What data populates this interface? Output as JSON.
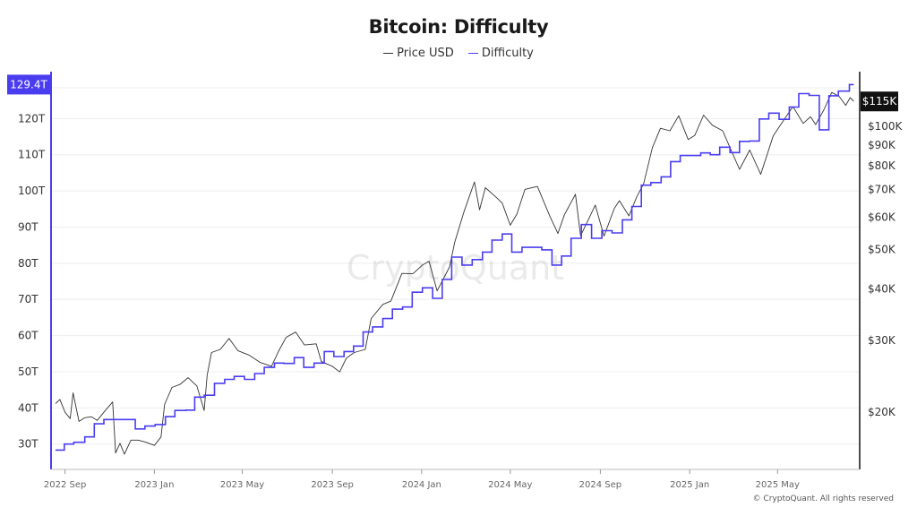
{
  "title": "Bitcoin: Difficulty",
  "legend": [
    {
      "label": "Price USD",
      "color": "#333333"
    },
    {
      "label": "Difficulty",
      "color": "#4a3df0"
    }
  ],
  "watermark": "CryptoQuant",
  "copyright": "© CryptoQuant. All rights reserved",
  "colors": {
    "difficulty": "#4a3df0",
    "price": "#333333",
    "current_difficulty_badge": "#4a3df0",
    "current_price_badge": "#111111"
  },
  "chart_data": {
    "type": "line",
    "title": "Bitcoin: Difficulty",
    "x_ticks": [
      "2022 Sep",
      "2023 Jan",
      "2023 May",
      "2023 Sep",
      "2024 Jan",
      "2024 May",
      "2024 Sep",
      "2025 Jan",
      "2025 May"
    ],
    "left_axis": {
      "series": "Difficulty",
      "ticks": [
        "30T",
        "40T",
        "50T",
        "60T",
        "70T",
        "80T",
        "90T",
        "100T",
        "110T",
        "120T"
      ],
      "ylim": [
        23,
        130
      ],
      "current_label": "129.4T"
    },
    "right_axis": {
      "series": "Price USD",
      "scale": "log",
      "ticks": [
        "$20K",
        "$30K",
        "$40K",
        "$50K",
        "$60K",
        "$70K",
        "$80K",
        "$90K",
        "$100K"
      ],
      "current_label": "$115K"
    },
    "grid": "horizontal",
    "series": [
      {
        "name": "Difficulty",
        "axis": "left",
        "step": true,
        "points": [
          [
            "2022-08-19",
            28.35
          ],
          [
            "2022-08-31",
            30.0
          ],
          [
            "2022-09-13",
            30.5
          ],
          [
            "2022-09-28",
            32.0
          ],
          [
            "2022-10-11",
            35.6
          ],
          [
            "2022-10-24",
            36.8
          ],
          [
            "2022-11-07",
            36.8
          ],
          [
            "2022-11-21",
            36.8
          ],
          [
            "2022-12-06",
            34.2
          ],
          [
            "2022-12-19",
            35.0
          ],
          [
            "2023-01-02",
            35.4
          ],
          [
            "2023-01-16",
            37.6
          ],
          [
            "2023-01-29",
            39.3
          ],
          [
            "2023-02-13",
            39.4
          ],
          [
            "2023-02-25",
            43.0
          ],
          [
            "2023-03-10",
            43.5
          ],
          [
            "2023-03-24",
            46.8
          ],
          [
            "2023-04-07",
            47.9
          ],
          [
            "2023-04-20",
            48.7
          ],
          [
            "2023-05-04",
            47.9
          ],
          [
            "2023-05-18",
            49.5
          ],
          [
            "2023-05-31",
            51.2
          ],
          [
            "2023-06-14",
            52.4
          ],
          [
            "2023-06-27",
            52.3
          ],
          [
            "2023-07-11",
            53.9
          ],
          [
            "2023-07-24",
            51.2
          ],
          [
            "2023-08-07",
            52.4
          ],
          [
            "2023-08-21",
            55.6
          ],
          [
            "2023-09-03",
            54.2
          ],
          [
            "2023-09-17",
            55.6
          ],
          [
            "2023-09-30",
            57.1
          ],
          [
            "2023-10-13",
            61.0
          ],
          [
            "2023-10-26",
            62.4
          ],
          [
            "2023-11-09",
            64.7
          ],
          [
            "2023-11-22",
            67.3
          ],
          [
            "2023-12-06",
            67.9
          ],
          [
            "2023-12-19",
            72.0
          ],
          [
            "2024-01-02",
            73.2
          ],
          [
            "2024-01-16",
            70.3
          ],
          [
            "2024-01-29",
            75.5
          ],
          [
            "2024-02-11",
            81.7
          ],
          [
            "2024-02-25",
            79.5
          ],
          [
            "2024-03-10",
            81.0
          ],
          [
            "2024-03-24",
            83.1
          ],
          [
            "2024-04-06",
            86.4
          ],
          [
            "2024-04-20",
            88.1
          ],
          [
            "2024-05-03",
            83.1
          ],
          [
            "2024-05-17",
            84.4
          ],
          [
            "2024-05-30",
            84.4
          ],
          [
            "2024-06-13",
            83.7
          ],
          [
            "2024-06-27",
            79.5
          ],
          [
            "2024-07-10",
            82.0
          ],
          [
            "2024-07-23",
            86.9
          ],
          [
            "2024-08-06",
            90.7
          ],
          [
            "2024-08-20",
            86.9
          ],
          [
            "2024-09-03",
            89.0
          ],
          [
            "2024-09-17",
            88.4
          ],
          [
            "2024-10-01",
            92.0
          ],
          [
            "2024-10-14",
            95.7
          ],
          [
            "2024-10-27",
            101.6
          ],
          [
            "2024-11-09",
            102.3
          ],
          [
            "2024-11-23",
            103.9
          ],
          [
            "2024-12-06",
            108.1
          ],
          [
            "2024-12-19",
            109.8
          ],
          [
            "2025-01-02",
            109.8
          ],
          [
            "2025-01-16",
            110.5
          ],
          [
            "2025-01-29",
            110.0
          ],
          [
            "2025-02-11",
            112.1
          ],
          [
            "2025-02-25",
            110.6
          ],
          [
            "2025-03-10",
            113.7
          ],
          [
            "2025-03-24",
            113.8
          ],
          [
            "2025-04-06",
            119.9
          ],
          [
            "2025-04-19",
            121.5
          ],
          [
            "2025-05-03",
            119.8
          ],
          [
            "2025-05-17",
            123.2
          ],
          [
            "2025-05-30",
            126.9
          ],
          [
            "2025-06-13",
            126.4
          ],
          [
            "2025-06-27",
            116.9
          ],
          [
            "2025-07-10",
            126.3
          ],
          [
            "2025-07-23",
            127.6
          ],
          [
            "2025-08-04",
            127.6
          ],
          [
            "2025-08-07",
            129.4
          ],
          [
            "2025-08-13",
            129.4
          ]
        ]
      },
      {
        "name": "Price USD",
        "axis": "right",
        "step": false,
        "points": [
          [
            "2022-08-19",
            21000
          ],
          [
            "2022-08-25",
            21500
          ],
          [
            "2022-09-01",
            20000
          ],
          [
            "2022-09-08",
            19300
          ],
          [
            "2022-09-12",
            22300
          ],
          [
            "2022-09-20",
            19000
          ],
          [
            "2022-09-28",
            19400
          ],
          [
            "2022-10-07",
            19500
          ],
          [
            "2022-10-15",
            19100
          ],
          [
            "2022-10-25",
            20100
          ],
          [
            "2022-11-05",
            21200
          ],
          [
            "2022-11-09",
            15900
          ],
          [
            "2022-11-15",
            16800
          ],
          [
            "2022-11-21",
            15800
          ],
          [
            "2022-11-30",
            17100
          ],
          [
            "2022-12-10",
            17100
          ],
          [
            "2022-12-20",
            16900
          ],
          [
            "2023-01-01",
            16600
          ],
          [
            "2023-01-10",
            17400
          ],
          [
            "2023-01-15",
            20900
          ],
          [
            "2023-01-25",
            23000
          ],
          [
            "2023-02-05",
            23400
          ],
          [
            "2023-02-16",
            24300
          ],
          [
            "2023-02-28",
            23200
          ],
          [
            "2023-03-10",
            20200
          ],
          [
            "2023-03-14",
            24600
          ],
          [
            "2023-03-20",
            28000
          ],
          [
            "2023-04-01",
            28500
          ],
          [
            "2023-04-13",
            30300
          ],
          [
            "2023-04-25",
            28300
          ],
          [
            "2023-05-10",
            27600
          ],
          [
            "2023-05-25",
            26500
          ],
          [
            "2023-06-10",
            25900
          ],
          [
            "2023-06-20",
            28300
          ],
          [
            "2023-06-30",
            30500
          ],
          [
            "2023-07-13",
            31400
          ],
          [
            "2023-07-25",
            29200
          ],
          [
            "2023-08-10",
            29400
          ],
          [
            "2023-08-17",
            26600
          ],
          [
            "2023-09-01",
            25900
          ],
          [
            "2023-09-11",
            25100
          ],
          [
            "2023-09-20",
            27100
          ],
          [
            "2023-10-01",
            28000
          ],
          [
            "2023-10-16",
            28500
          ],
          [
            "2023-10-24",
            33900
          ],
          [
            "2023-11-09",
            36700
          ],
          [
            "2023-11-20",
            37400
          ],
          [
            "2023-12-05",
            43700
          ],
          [
            "2023-12-20",
            43600
          ],
          [
            "2024-01-02",
            45800
          ],
          [
            "2024-01-11",
            46800
          ],
          [
            "2024-01-22",
            39600
          ],
          [
            "2024-02-08",
            45300
          ],
          [
            "2024-02-15",
            52000
          ],
          [
            "2024-02-28",
            62000
          ],
          [
            "2024-03-13",
            73100
          ],
          [
            "2024-03-20",
            62500
          ],
          [
            "2024-03-28",
            70800
          ],
          [
            "2024-04-12",
            67000
          ],
          [
            "2024-04-20",
            64900
          ],
          [
            "2024-05-01",
            57300
          ],
          [
            "2024-05-10",
            61000
          ],
          [
            "2024-05-21",
            70100
          ],
          [
            "2024-06-07",
            71300
          ],
          [
            "2024-06-24",
            60300
          ],
          [
            "2024-07-05",
            54700
          ],
          [
            "2024-07-14",
            60800
          ],
          [
            "2024-07-29",
            68200
          ],
          [
            "2024-08-05",
            54000
          ],
          [
            "2024-08-15",
            58800
          ],
          [
            "2024-08-25",
            64200
          ],
          [
            "2024-09-06",
            53900
          ],
          [
            "2024-09-20",
            63000
          ],
          [
            "2024-09-27",
            65800
          ],
          [
            "2024-10-10",
            60400
          ],
          [
            "2024-10-21",
            67400
          ],
          [
            "2024-10-30",
            72300
          ],
          [
            "2024-11-11",
            88700
          ],
          [
            "2024-11-22",
            98900
          ],
          [
            "2024-12-05",
            97500
          ],
          [
            "2024-12-17",
            106100
          ],
          [
            "2024-12-30",
            92800
          ],
          [
            "2025-01-08",
            95000
          ],
          [
            "2025-01-20",
            106500
          ],
          [
            "2025-02-01",
            100600
          ],
          [
            "2025-02-15",
            97500
          ],
          [
            "2025-02-25",
            88700
          ],
          [
            "2025-03-10",
            78500
          ],
          [
            "2025-03-24",
            87500
          ],
          [
            "2025-04-08",
            76300
          ],
          [
            "2025-04-25",
            94700
          ],
          [
            "2025-05-10",
            104000
          ],
          [
            "2025-05-22",
            111700
          ],
          [
            "2025-06-05",
            101600
          ],
          [
            "2025-06-15",
            105500
          ],
          [
            "2025-06-22",
            101000
          ],
          [
            "2025-07-03",
            109500
          ],
          [
            "2025-07-14",
            121000
          ],
          [
            "2025-07-24",
            118400
          ],
          [
            "2025-08-02",
            112500
          ],
          [
            "2025-08-08",
            117500
          ],
          [
            "2025-08-13",
            115000
          ]
        ]
      }
    ]
  }
}
